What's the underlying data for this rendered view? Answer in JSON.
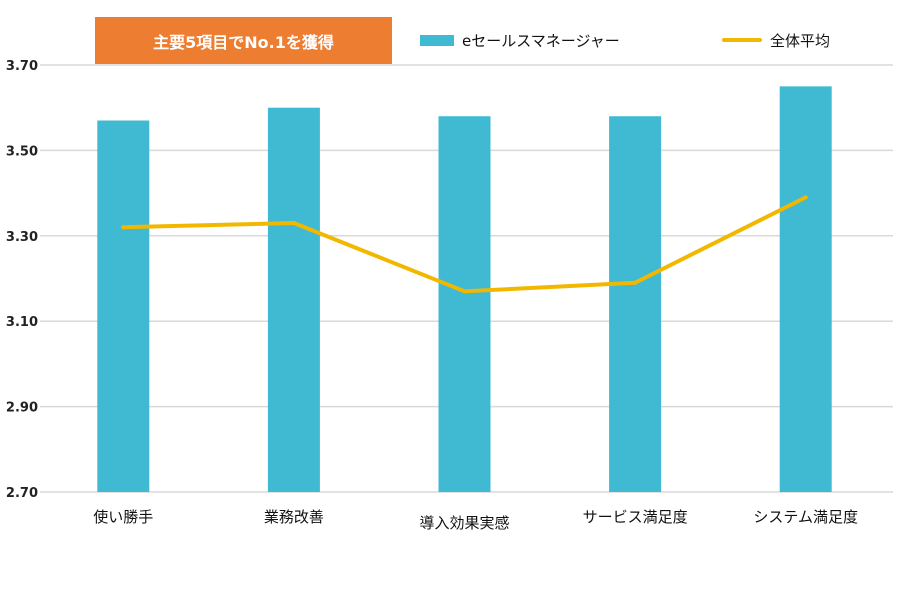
{
  "badge": {
    "text": "主要5項目でNo.1を獲得",
    "color": "#ED7D31"
  },
  "chart_data": {
    "type": "bar",
    "categories": [
      "使い勝手",
      "業務改善",
      "導入効果実感",
      "サービス満足度",
      "システム満足度"
    ],
    "series": [
      {
        "name": "eセールスマネージャー",
        "kind": "bar",
        "color": "#40B9D3",
        "values": [
          3.57,
          3.6,
          3.58,
          3.58,
          3.65
        ]
      },
      {
        "name": "全体平均",
        "kind": "line",
        "color": "#F2B800",
        "values": [
          3.32,
          3.33,
          3.17,
          3.19,
          3.39
        ]
      }
    ],
    "ylim": [
      2.7,
      3.7
    ],
    "yticks": [
      "2.70",
      "2.90",
      "3.10",
      "3.30",
      "3.50",
      "3.70"
    ],
    "grid": true,
    "legend_position": "top"
  }
}
